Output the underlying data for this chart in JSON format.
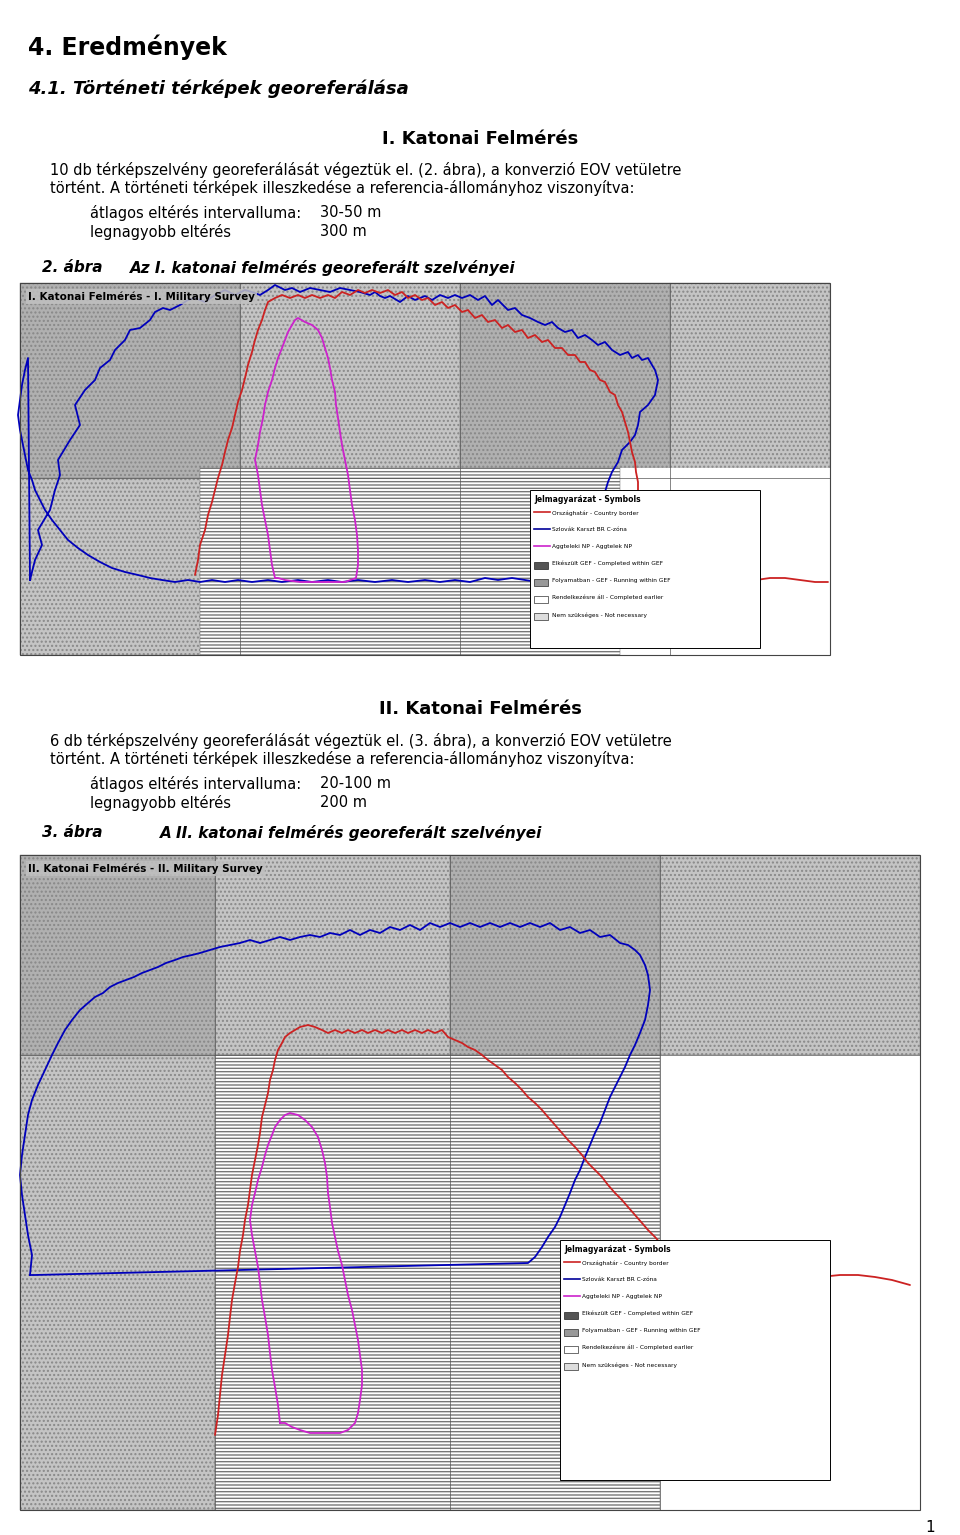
{
  "title1": "4. Eredmények",
  "subtitle1": "4.1. Történeti térképek georeferálása",
  "section1_title": "I. Katonai Felmérés",
  "section1_label1": "átlagos eltérés intervalluma:",
  "section1_value1": "30-50 m",
  "section1_label2": "legnagyobb eltérés",
  "section1_value2": "300 m",
  "fig1_caption_num": "2. ábra",
  "fig1_caption_text": "Az I. katonai felmérés georeferált szelvényei",
  "fig1_inner_title": "I. Katonai Felmérés - I. Military Survey",
  "section2_title": "II. Katonai Felmérés",
  "section2_label1": "átlagos eltérés intervalluma:",
  "section2_value1": "20-100 m",
  "section2_label2": "legnagyobb eltérés",
  "section2_value2": "200 m",
  "fig2_caption_num": "3. ábra",
  "fig2_caption_text": "A II. katonai felmérés georeferált szelvényei",
  "fig2_inner_title": "II. Katonai Felmérés - II. Military Survey",
  "legend_title": "Jelmagyarázat - Symbols",
  "legend_items": [
    "Országhatár - Country border",
    "Szlovák Karszt BR C-zóna",
    "Aggteleki NP - Aggtelek NP",
    "Elkészült GEF - Completed within GEF",
    "Folyamatban - GEF - Running within GEF",
    "Rendelkezésre áll - Completed earlier",
    "Nem szükséges - Not necessary"
  ],
  "page_number": "1",
  "bg": "#ffffff",
  "col_blue": "#0000bb",
  "col_red": "#cc2222",
  "col_magenta": "#cc22cc",
  "col_dark_gray": "#888888",
  "col_gray_tile": "#b0b0b0",
  "col_gray_tile2": "#c4c4c4"
}
